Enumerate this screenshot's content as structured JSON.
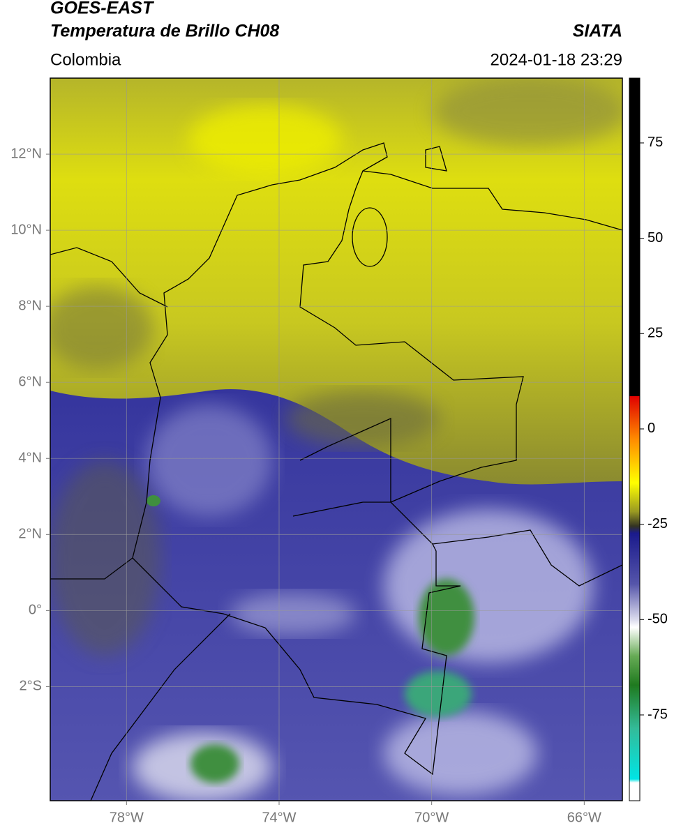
{
  "header": {
    "title": "GOES-EAST",
    "subtitle": "Temperatura de Brillo CH08",
    "source": "SIATA",
    "region": "Colombia",
    "datetime": "2024-01-18 23:29"
  },
  "map": {
    "xlim": [
      -80,
      -65
    ],
    "ylim": [
      -5,
      14
    ],
    "xticks": [
      {
        "value": -78,
        "label": "78°W"
      },
      {
        "value": -74,
        "label": "74°W"
      },
      {
        "value": -70,
        "label": "70°W"
      },
      {
        "value": -66,
        "label": "66°W"
      }
    ],
    "yticks": [
      {
        "value": 12,
        "label": "12°N"
      },
      {
        "value": 10,
        "label": "10°N"
      },
      {
        "value": 8,
        "label": "8°N"
      },
      {
        "value": 6,
        "label": "6°N"
      },
      {
        "value": 4,
        "label": "4°N"
      },
      {
        "value": 2,
        "label": "2°N"
      },
      {
        "value": 0,
        "label": "0°"
      },
      {
        "value": -2,
        "label": "2°S"
      }
    ],
    "grid": true
  },
  "colorbar": {
    "clim": [
      -97.5,
      92
    ],
    "ticks": [
      75,
      50,
      25,
      0,
      -25,
      -50,
      -75
    ]
  }
}
